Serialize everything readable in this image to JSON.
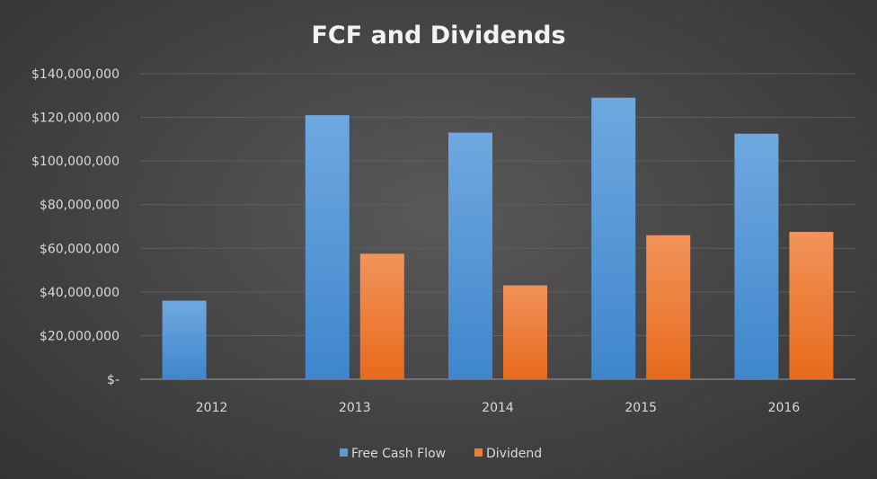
{
  "chart_data": {
    "type": "bar",
    "title": "FCF and Dividends",
    "xlabel": "",
    "ylabel": "",
    "categories": [
      "2012",
      "2013",
      "2014",
      "2015",
      "2016"
    ],
    "series": [
      {
        "name": "Free Cash Flow",
        "color": "#5b9bd5",
        "values": [
          36000000,
          121000000,
          113000000,
          129000000,
          112500000
        ]
      },
      {
        "name": "Dividend",
        "color": "#ed7d31",
        "values": [
          0,
          57500000,
          43000000,
          66000000,
          67500000
        ]
      }
    ],
    "ylim": [
      0,
      140000000
    ],
    "yticks": [
      {
        "value": 0,
        "label": "$-"
      },
      {
        "value": 20000000,
        "label": "$20,000,000"
      },
      {
        "value": 40000000,
        "label": "$40,000,000"
      },
      {
        "value": 60000000,
        "label": "$60,000,000"
      },
      {
        "value": 80000000,
        "label": "$80,000,000"
      },
      {
        "value": 100000000,
        "label": "$100,000,000"
      },
      {
        "value": 120000000,
        "label": "$120,000,000"
      },
      {
        "value": 140000000,
        "label": "$140,000,000"
      }
    ],
    "grid": true,
    "legend": "bottom-center"
  }
}
